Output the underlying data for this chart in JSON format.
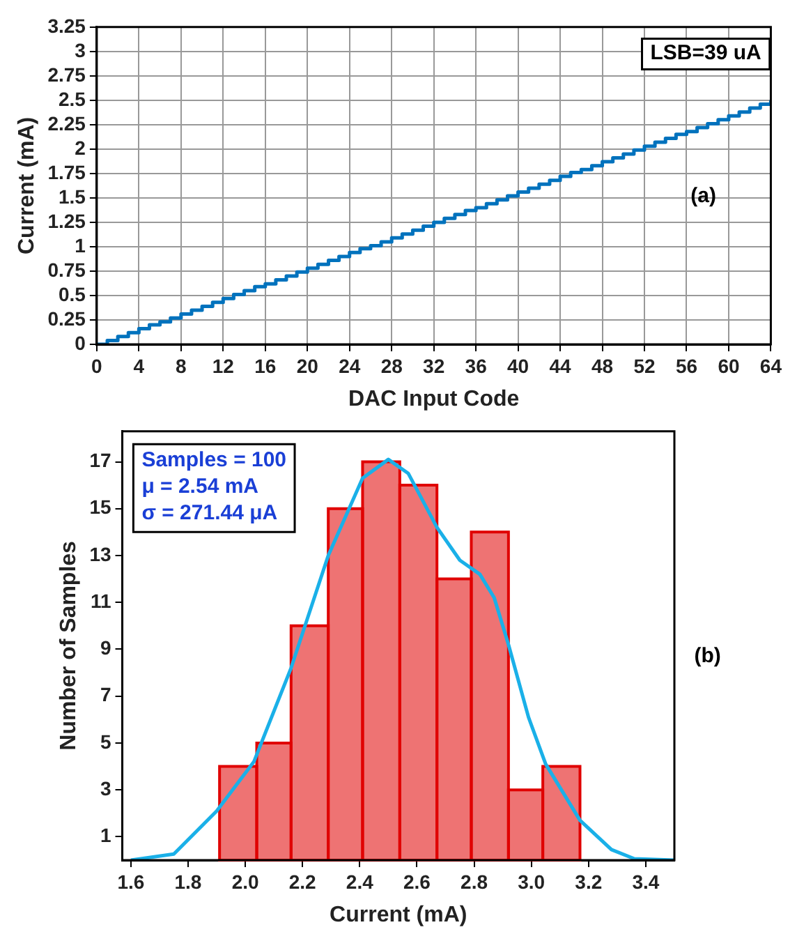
{
  "chart_data": [
    {
      "type": "step",
      "xlabel": "DAC Input Code",
      "ylabel": "Current (mA)",
      "color": "#0072bd",
      "x": [
        0,
        1,
        2,
        3,
        4,
        5,
        6,
        7,
        8,
        9,
        10,
        11,
        12,
        13,
        14,
        15,
        16,
        17,
        18,
        19,
        20,
        21,
        22,
        23,
        24,
        25,
        26,
        27,
        28,
        29,
        30,
        31,
        32,
        33,
        34,
        35,
        36,
        37,
        38,
        39,
        40,
        41,
        42,
        43,
        44,
        45,
        46,
        47,
        48,
        49,
        50,
        51,
        52,
        53,
        54,
        55,
        56,
        57,
        58,
        59,
        60,
        61,
        62,
        63,
        64
      ],
      "values": [
        0,
        0.04,
        0.08,
        0.12,
        0.16,
        0.2,
        0.23,
        0.27,
        0.31,
        0.35,
        0.39,
        0.43,
        0.47,
        0.51,
        0.55,
        0.59,
        0.62,
        0.66,
        0.7,
        0.74,
        0.78,
        0.82,
        0.86,
        0.9,
        0.94,
        0.98,
        1.01,
        1.05,
        1.09,
        1.13,
        1.17,
        1.21,
        1.25,
        1.29,
        1.33,
        1.37,
        1.4,
        1.44,
        1.48,
        1.52,
        1.56,
        1.6,
        1.64,
        1.68,
        1.72,
        1.76,
        1.79,
        1.83,
        1.87,
        1.91,
        1.95,
        1.99,
        2.03,
        2.07,
        2.11,
        2.15,
        2.18,
        2.22,
        2.26,
        2.3,
        2.34,
        2.38,
        2.42,
        2.46,
        2.5
      ],
      "xlim": [
        0,
        64
      ],
      "xticks": [
        0,
        4,
        8,
        12,
        16,
        20,
        24,
        28,
        32,
        36,
        40,
        44,
        48,
        52,
        56,
        60,
        64
      ],
      "ylim": [
        0,
        3.25
      ],
      "yticks": [
        0,
        0.25,
        0.5,
        0.75,
        1,
        1.25,
        1.5,
        1.75,
        2,
        2.25,
        2.5,
        2.75,
        3,
        3.25
      ],
      "grid": true,
      "line_style": "solid",
      "marker": "none",
      "annotations": [
        "LSB=39 uA",
        "(a)"
      ]
    },
    {
      "type": "histogram",
      "xlabel": "Current (mA)",
      "ylabel": "Number of Samples",
      "color": "#e00000",
      "bins": [
        1.91,
        2.04,
        2.16,
        2.29,
        2.41,
        2.54,
        2.67,
        2.79,
        2.92,
        3.04,
        3.17
      ],
      "values": [
        4,
        5,
        10,
        15,
        17,
        16,
        12,
        14,
        3,
        4
      ],
      "series": [
        {
          "type": "line",
          "color": "#1ab0e8",
          "x": [
            1.6,
            1.75,
            1.9,
            2.03,
            2.16,
            2.29,
            2.41,
            2.5,
            2.57,
            2.67,
            2.75,
            2.82,
            2.87,
            2.92,
            2.99,
            3.05,
            3.17,
            3.28,
            3.36,
            3.5
          ],
          "values": [
            0,
            0.26,
            2.1,
            4.2,
            8.2,
            13,
            16.3,
            17.1,
            16.5,
            14.2,
            12.8,
            12.2,
            11.2,
            9.2,
            6.1,
            4.1,
            1.7,
            0.45,
            0.06,
            0
          ]
        }
      ],
      "xlim": [
        1.57,
        3.5
      ],
      "xticks": [
        1.6,
        1.8,
        {
          "value": 2,
          "label": "2.0"
        },
        2.2,
        2.4,
        2.6,
        2.8,
        {
          "value": 3,
          "label": "3.0"
        },
        3.2,
        3.4
      ],
      "ylim": [
        0,
        18.3
      ],
      "yticks": [
        1,
        3,
        5,
        7,
        9,
        11,
        13,
        15,
        17
      ],
      "annotations": [
        "Samples = 100",
        "μ = 2.54 mA",
        "σ = 271.44 μA",
        "(b)"
      ]
    }
  ]
}
